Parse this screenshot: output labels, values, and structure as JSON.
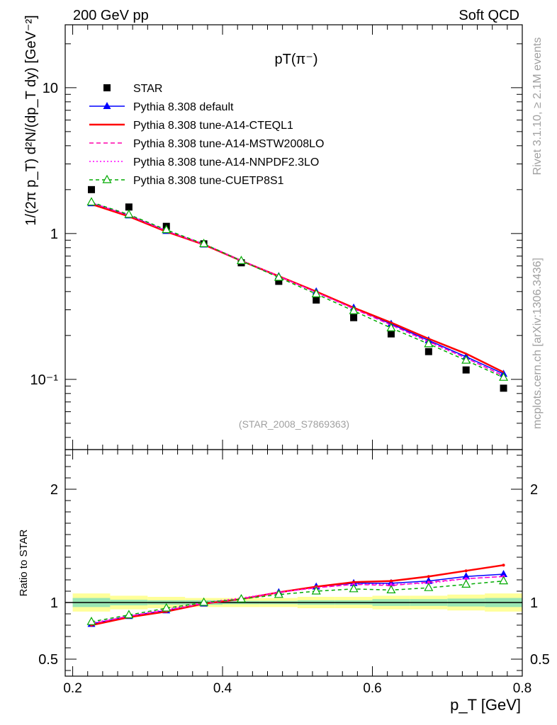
{
  "header": {
    "left": "200 GeV pp",
    "right": "Soft QCD"
  },
  "side_labels": {
    "rivet": "Rivet 3.1.10, ≥ 2.1M events",
    "mcplots": "mcplots.cern.ch [arXiv:1306.3436]"
  },
  "chart_data": {
    "type": "scatter",
    "title": "pT(π⁻)",
    "analysis_label": "(STAR_2008_S7869363)",
    "xlabel": "p_T [GeV]",
    "ylabel": "1/(2π p_T) d²N/(dp_T dy) [GeV⁻²]",
    "xlim": [
      0.19,
      0.8
    ],
    "ylim": [
      0.033,
      27
    ],
    "yscale": "log",
    "x_ticks": [
      "0.2",
      "0.4",
      "0.6",
      "0.8"
    ],
    "y_ticks": [
      "10⁻¹",
      "1",
      "10"
    ],
    "x": [
      0.225,
      0.275,
      0.325,
      0.375,
      0.425,
      0.475,
      0.525,
      0.575,
      0.625,
      0.675,
      0.725,
      0.775
    ],
    "legend_placement": "top-left",
    "series": [
      {
        "name": "STAR",
        "color": "#000000",
        "marker": "square",
        "values": [
          2.0,
          1.52,
          1.12,
          0.85,
          0.63,
          0.47,
          0.35,
          0.265,
          0.205,
          0.155,
          0.116,
          0.087
        ]
      },
      {
        "name": "Pythia 8.308 default",
        "color": "#0000ff",
        "marker": "triangle",
        "values": [
          1.61,
          1.33,
          1.04,
          0.84,
          0.65,
          0.51,
          0.4,
          0.31,
          0.24,
          0.185,
          0.143,
          0.109
        ]
      },
      {
        "name": "Pythia 8.308 tune-A14-CTEQL1",
        "color": "#ff0000",
        "marker": "line",
        "values": [
          1.59,
          1.31,
          1.03,
          0.84,
          0.65,
          0.51,
          0.4,
          0.31,
          0.245,
          0.19,
          0.15,
          0.112
        ]
      },
      {
        "name": "Pythia 8.308 tune-A14-MSTW2008LO",
        "color": "#ff00aa",
        "marker": "dashed",
        "values": [
          1.62,
          1.33,
          1.04,
          0.84,
          0.65,
          0.51,
          0.395,
          0.305,
          0.236,
          0.182,
          0.14,
          0.106
        ]
      },
      {
        "name": "Pythia 8.308 tune-A14-NNPDF2.3LO",
        "color": "#ff00ff",
        "marker": "dotted",
        "values": [
          1.63,
          1.34,
          1.05,
          0.85,
          0.655,
          0.51,
          0.395,
          0.305,
          0.236,
          0.18,
          0.14,
          0.105
        ]
      },
      {
        "name": "Pythia 8.308 tune-CUETP8S1",
        "color": "#00aa00",
        "marker": "open-triangle",
        "values": [
          1.64,
          1.35,
          1.06,
          0.85,
          0.65,
          0.5,
          0.385,
          0.295,
          0.225,
          0.175,
          0.135,
          0.103
        ]
      }
    ],
    "ratio": {
      "ylabel": "Ratio to STAR",
      "ylim": [
        0.35,
        2.35
      ],
      "y_ticks": [
        "0.5",
        "1",
        "2"
      ],
      "bands": {
        "edges": [
          0.2,
          0.25,
          0.3,
          0.35,
          0.4,
          0.45,
          0.5,
          0.55,
          0.6,
          0.65,
          0.7,
          0.75,
          0.8
        ],
        "stat": [
          0.04,
          0.025,
          0.02,
          0.02,
          0.015,
          0.015,
          0.02,
          0.02,
          0.03,
          0.03,
          0.035,
          0.04
        ],
        "sys": [
          0.08,
          0.06,
          0.05,
          0.04,
          0.04,
          0.04,
          0.05,
          0.05,
          0.06,
          0.06,
          0.07,
          0.08
        ]
      },
      "series": [
        {
          "name": "Pythia 8.308 default",
          "color": "#0000ff",
          "values": [
            0.81,
            0.88,
            0.93,
            0.99,
            1.03,
            1.09,
            1.14,
            1.17,
            1.17,
            1.19,
            1.23,
            1.25
          ]
        },
        {
          "name": "Pythia 8.308 tune-A14-CTEQL1",
          "color": "#ff0000",
          "values": [
            0.8,
            0.87,
            0.92,
            0.99,
            1.03,
            1.09,
            1.14,
            1.18,
            1.19,
            1.23,
            1.28,
            1.33
          ]
        },
        {
          "name": "Pythia 8.308 tune-A14-MSTW2008LO",
          "color": "#ff00aa",
          "values": [
            0.81,
            0.88,
            0.93,
            0.99,
            1.03,
            1.09,
            1.13,
            1.16,
            1.15,
            1.18,
            1.21,
            1.23
          ]
        },
        {
          "name": "Pythia 8.308 tune-A14-NNPDF2.3LO",
          "color": "#ff00ff",
          "values": [
            0.82,
            0.88,
            0.94,
            1.0,
            1.04,
            1.09,
            1.13,
            1.16,
            1.16,
            1.17,
            1.21,
            1.23
          ]
        },
        {
          "name": "Pythia 8.308 tune-CUETP8S1",
          "color": "#00aa00",
          "values": [
            0.83,
            0.89,
            0.95,
            1.0,
            1.03,
            1.07,
            1.1,
            1.12,
            1.11,
            1.13,
            1.16,
            1.19
          ]
        }
      ]
    }
  }
}
